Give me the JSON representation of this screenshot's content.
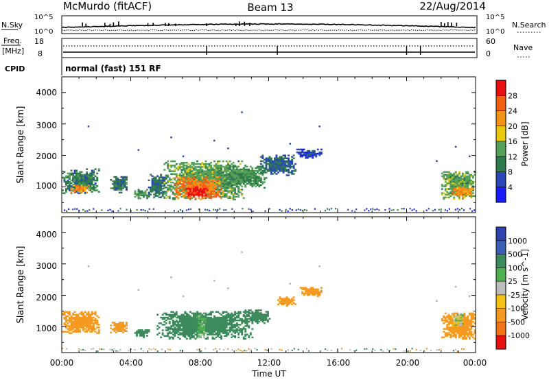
{
  "header": {
    "station": "McMurdo (fitACF)",
    "beam": "Beam 13",
    "date": "22/Aug/2014"
  },
  "status_panels": {
    "nsky_label": "N.Sky",
    "nsearch_label": "N.Search",
    "noise_ticks": [
      "10^5",
      "10^0"
    ],
    "freq_label_1": "Freq.",
    "freq_label_2": "[MHz]",
    "freq_ticks": [
      "18",
      "8"
    ],
    "nave_label": "Nave",
    "nave_ticks": [
      "60",
      "0"
    ],
    "cpid_label": "CPID",
    "cpid_value": "normal (fast) 151 RF"
  },
  "axes": {
    "x_label": "Time UT",
    "x_ticks": [
      "00:00",
      "04:00",
      "08:00",
      "12:00",
      "16:00",
      "20:00",
      "00:00"
    ],
    "y_label": "Slant Range [km]",
    "y_ticks": [
      "1000",
      "2000",
      "3000",
      "4000"
    ]
  },
  "colorbars": {
    "power": {
      "label": "Power [dB]",
      "ticks": [
        "4",
        "8",
        "12",
        "16",
        "20",
        "24",
        "28"
      ],
      "colors": [
        "#1a1aff",
        "#2a46b8",
        "#2f7a4c",
        "#56a15a",
        "#e8c90e",
        "#f29318",
        "#f26014",
        "#e81010"
      ]
    },
    "velocity": {
      "label": "Velocity [m s^-1]",
      "ticks": [
        "1000",
        "500",
        "100",
        "25",
        "-25",
        "-100",
        "-500",
        "-1000"
      ],
      "colors": [
        "#2f44b0",
        "#3a5fb4",
        "#3d8a5c",
        "#4fb04f",
        "#bdbdbd",
        "#f3c213",
        "#f59a20",
        "#f27418",
        "#e81010"
      ]
    }
  },
  "chart_data": {
    "type": "heatmap",
    "title": "McMurdo (fitACF) Beam 13 22/Aug/2014",
    "x_range_hours": [
      0,
      24
    ],
    "y_range_km": [
      180,
      4500
    ],
    "power_regions": [
      {
        "t": [
          0.0,
          2.2
        ],
        "r": [
          780,
          1550
        ],
        "dB": 10
      },
      {
        "t": [
          0.5,
          1.6
        ],
        "r": [
          800,
          1050
        ],
        "dB": 22
      },
      {
        "t": [
          2.8,
          3.8
        ],
        "r": [
          800,
          1300
        ],
        "dB": 10
      },
      {
        "t": [
          4.2,
          5.0
        ],
        "r": [
          620,
          900
        ],
        "dB": 12
      },
      {
        "t": [
          5.0,
          6.0
        ],
        "r": [
          650,
          1400
        ],
        "dB": 9
      },
      {
        "t": [
          5.9,
          10.6
        ],
        "r": [
          580,
          1800
        ],
        "dB": 14
      },
      {
        "t": [
          6.5,
          9.3
        ],
        "r": [
          620,
          1300
        ],
        "dB": 24
      },
      {
        "t": [
          7.2,
          8.4
        ],
        "r": [
          650,
          980
        ],
        "dB": 29
      },
      {
        "t": [
          9.0,
          11.8
        ],
        "r": [
          950,
          1650
        ],
        "dB": 12
      },
      {
        "t": [
          11.5,
          13.5
        ],
        "r": [
          1350,
          2000
        ],
        "dB": 8
      },
      {
        "t": [
          13.6,
          15.0
        ],
        "r": [
          1900,
          2200
        ],
        "dB": 6
      },
      {
        "t": [
          22.0,
          24.0
        ],
        "r": [
          600,
          1500
        ],
        "dB": 14
      },
      {
        "t": [
          22.6,
          23.9
        ],
        "r": [
          650,
          1000
        ],
        "dB": 22
      }
    ],
    "velocity_regions": [
      {
        "t": [
          0.0,
          2.2
        ],
        "r": [
          780,
          1500
        ],
        "v": -250
      },
      {
        "t": [
          2.8,
          3.8
        ],
        "r": [
          800,
          1150
        ],
        "v": -200
      },
      {
        "t": [
          4.2,
          5.0
        ],
        "r": [
          650,
          900
        ],
        "v": 300
      },
      {
        "t": [
          5.5,
          11.0
        ],
        "r": [
          600,
          1500
        ],
        "v": 200
      },
      {
        "t": [
          7.8,
          8.3
        ],
        "r": [
          650,
          1400
        ],
        "v": 60
      },
      {
        "t": [
          10.5,
          12.0
        ],
        "r": [
          1100,
          1550
        ],
        "v": 200
      },
      {
        "t": [
          12.5,
          13.5
        ],
        "r": [
          1650,
          1950
        ],
        "v": -300
      },
      {
        "t": [
          13.8,
          15.0
        ],
        "r": [
          1950,
          2250
        ],
        "v": -300
      },
      {
        "t": [
          22.0,
          24.0
        ],
        "r": [
          600,
          1450
        ],
        "v": -350
      },
      {
        "t": [
          22.6,
          23.3
        ],
        "r": [
          1000,
          1450
        ],
        "v": 0
      }
    ]
  }
}
